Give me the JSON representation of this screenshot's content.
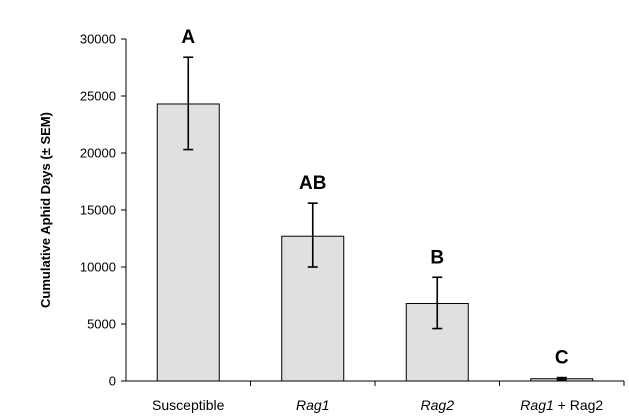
{
  "chart_data": {
    "type": "bar",
    "title": "",
    "xlabel": "",
    "ylabel": "Cumulative Aphid Days (± SEM)",
    "ylim": [
      0,
      30000
    ],
    "yticks": [
      0,
      5000,
      10000,
      15000,
      20000,
      25000,
      30000
    ],
    "grid": false,
    "categories": [
      {
        "parts": [
          {
            "text": "Susceptible",
            "italic": false
          }
        ]
      },
      {
        "parts": [
          {
            "text": "Rag1",
            "italic": true
          }
        ]
      },
      {
        "parts": [
          {
            "text": "Rag2",
            "italic": true
          }
        ]
      },
      {
        "parts": [
          {
            "text": "Rag1",
            "italic": true
          },
          {
            "text": " + Rag2",
            "italic": false
          }
        ]
      }
    ],
    "values": [
      24300,
      12700,
      6800,
      200
    ],
    "error_low": [
      20300,
      10000,
      4600,
      100
    ],
    "error_high": [
      28400,
      15600,
      9100,
      300
    ],
    "significance_labels": [
      "A",
      "AB",
      "B",
      "C"
    ],
    "colors": {
      "bar_fill": "#e0e0e0",
      "bar_stroke": "#000000"
    }
  }
}
